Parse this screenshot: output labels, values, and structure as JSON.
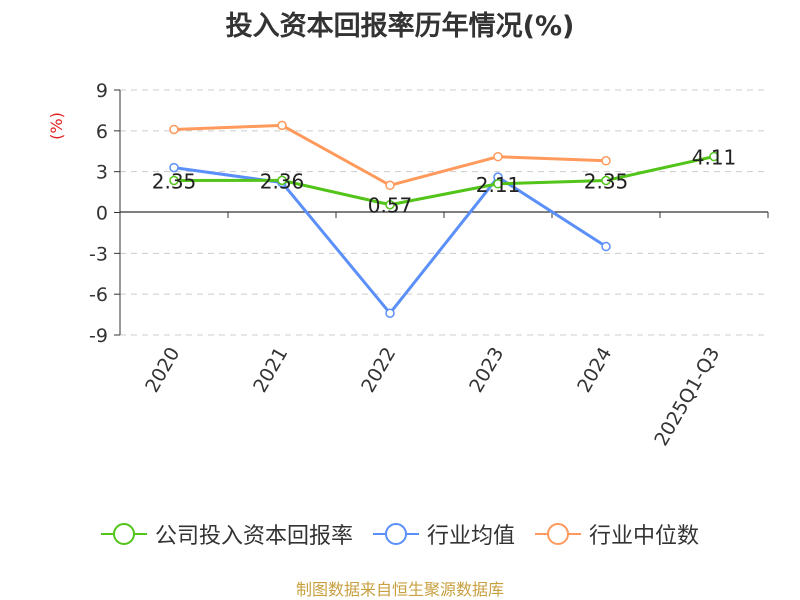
{
  "chart_data": {
    "type": "line",
    "title": "投入资本回报率历年情况(%)",
    "ylabel": "(%)",
    "categories": [
      "2020",
      "2021",
      "2022",
      "2023",
      "2024",
      "2025Q1-Q3"
    ],
    "yticks": [
      9,
      6,
      3,
      0,
      -3,
      -6,
      -9
    ],
    "ylim": [
      -9,
      9
    ],
    "grid": true,
    "legend_position": "bottom",
    "series": [
      {
        "name": "公司投入资本回报率",
        "color": "#52c41a",
        "values": [
          2.35,
          2.36,
          0.57,
          2.11,
          2.35,
          4.11
        ],
        "labels": [
          "2.35",
          "2.36",
          "0.57",
          "2.11",
          "2.35",
          "4.11"
        ]
      },
      {
        "name": "行业均值",
        "color": "#5b8ff9",
        "values": [
          3.3,
          2.2,
          -7.4,
          2.6,
          -2.5,
          null
        ]
      },
      {
        "name": "行业中位数",
        "color": "#ff9a5c",
        "values": [
          6.1,
          6.4,
          2.0,
          4.1,
          3.8,
          null
        ]
      }
    ],
    "source": "制图数据来自恒生聚源数据库"
  }
}
